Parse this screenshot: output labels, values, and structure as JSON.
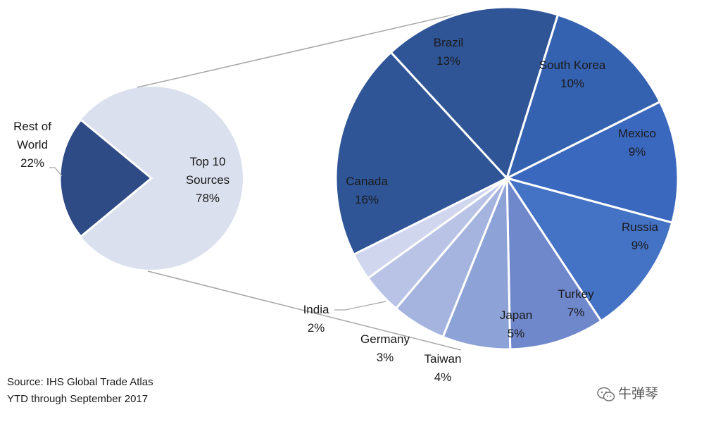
{
  "source_lines": [
    "Source: IHS Global Trade Atlas",
    "YTD through September 2017"
  ],
  "watermark": "牛弹琴",
  "colors": {
    "rest_of_world": "#2f4b86",
    "top10_bg": "#dbe0ee",
    "connector": "#a6a6a6",
    "slices": [
      "#2f5597",
      "#2f5597",
      "#3562b0",
      "#3b68bf",
      "#4472c4",
      "#6f87cb",
      "#8da2d6",
      "#a5b4df",
      "#b8c3e6",
      "#cfd6ee"
    ]
  },
  "chart_data": [
    {
      "type": "pie",
      "title": "",
      "slices": [
        {
          "label_lines": [
            "Rest of",
            "World",
            "22%"
          ],
          "value": 22
        },
        {
          "label_lines": [
            "Top 10",
            "Sources",
            "78%"
          ],
          "value": 78
        }
      ]
    },
    {
      "type": "pie",
      "title": "",
      "slices": [
        {
          "label_lines": [
            "Canada",
            "16%"
          ],
          "value": 16
        },
        {
          "label_lines": [
            "Brazil",
            "13%"
          ],
          "value": 13
        },
        {
          "label_lines": [
            "South Korea",
            "10%"
          ],
          "value": 10
        },
        {
          "label_lines": [
            "Mexico",
            "9%"
          ],
          "value": 9
        },
        {
          "label_lines": [
            "Russia",
            "9%"
          ],
          "value": 9
        },
        {
          "label_lines": [
            "Turkey",
            "7%"
          ],
          "value": 7
        },
        {
          "label_lines": [
            "Japan",
            "5%"
          ],
          "value": 5
        },
        {
          "label_lines": [
            "Taiwan",
            "4%"
          ],
          "value": 4
        },
        {
          "label_lines": [
            "Germany",
            "3%"
          ],
          "value": 3
        },
        {
          "label_lines": [
            "India",
            "2%"
          ],
          "value": 2
        }
      ]
    }
  ]
}
